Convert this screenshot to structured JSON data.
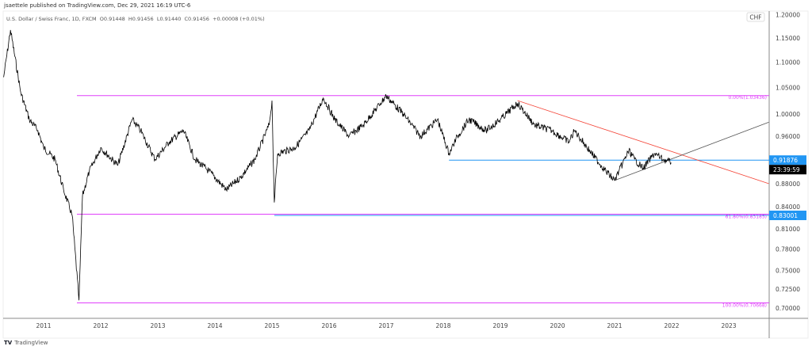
{
  "header": {
    "published": "jsaettele published on TradingView.com, Dec 29, 2021 16:19 UTC-6",
    "symbol": "U.S. Dollar / Swiss Franc, 1D, FXCM",
    "open": "O0.91448",
    "high": "H0.91456",
    "low": "L0.91440",
    "close": "C0.91456",
    "change": "+0.00008 (+0.01%)"
  },
  "currency_badge": "CHF",
  "footer": {
    "logo": "TradingView"
  },
  "colors": {
    "fib": "#e040fb",
    "blue": "#2196f3",
    "red": "#f44336",
    "trend": "#555555",
    "price": "#000000"
  },
  "chart_data": {
    "type": "line",
    "scale": "log",
    "ylim": [
      0.69,
      1.21
    ],
    "xlim": [
      2010.3,
      2023.7
    ],
    "x_ticks": [
      "2011",
      "2012",
      "2013",
      "2014",
      "2015",
      "2016",
      "2017",
      "2018",
      "2019",
      "2020",
      "2021",
      "2022",
      "2023"
    ],
    "y_ticks": [
      "1.20000",
      "1.15000",
      "1.10000",
      "1.05000",
      "1.00000",
      "0.96000",
      "0.88000",
      "0.84000",
      "0.81000",
      "0.78000",
      "0.75000",
      "0.72500",
      "0.70000"
    ],
    "price_labels": {
      "last": "0.91876",
      "countdown": "23:39:59",
      "level": "0.83001"
    },
    "fib_levels": [
      {
        "label": "0.00%(1.03436)",
        "value": 1.03436
      },
      {
        "label": "61.80%(0.83185)",
        "value": 0.83185
      },
      {
        "label": "100.00%(0.70668)",
        "value": 0.70668
      }
    ],
    "horizontal_lines": [
      {
        "value": 0.91876,
        "from": 2018.1
      },
      {
        "value": 0.83001,
        "from": 2015.04
      }
    ],
    "trendlines": [
      {
        "color": "red",
        "from": [
          2019.3,
          1.025
        ],
        "to": [
          2023.7,
          0.88
        ]
      },
      {
        "color": "gray",
        "from": [
          2021.0,
          0.885
        ],
        "to": [
          2023.7,
          0.985
        ]
      }
    ],
    "series": [
      [
        2010.3,
        1.07
      ],
      [
        2010.42,
        1.167
      ],
      [
        2010.6,
        1.04
      ],
      [
        2010.75,
        0.99
      ],
      [
        2010.9,
        0.97
      ],
      [
        2011.0,
        0.94
      ],
      [
        2011.2,
        0.92
      ],
      [
        2011.35,
        0.87
      ],
      [
        2011.5,
        0.83
      ],
      [
        2011.62,
        0.71
      ],
      [
        2011.68,
        0.86
      ],
      [
        2011.8,
        0.9
      ],
      [
        2012.0,
        0.94
      ],
      [
        2012.3,
        0.91
      ],
      [
        2012.55,
        0.99
      ],
      [
        2012.7,
        0.97
      ],
      [
        2012.95,
        0.92
      ],
      [
        2013.2,
        0.95
      ],
      [
        2013.45,
        0.97
      ],
      [
        2013.65,
        0.92
      ],
      [
        2013.9,
        0.9
      ],
      [
        2014.2,
        0.87
      ],
      [
        2014.45,
        0.89
      ],
      [
        2014.7,
        0.92
      ],
      [
        2014.95,
        0.98
      ],
      [
        2015.0,
        1.025
      ],
      [
        2015.04,
        0.85
      ],
      [
        2015.1,
        0.93
      ],
      [
        2015.4,
        0.94
      ],
      [
        2015.65,
        0.97
      ],
      [
        2015.9,
        1.03
      ],
      [
        2016.1,
        0.99
      ],
      [
        2016.35,
        0.96
      ],
      [
        2016.6,
        0.98
      ],
      [
        2016.9,
        1.02
      ],
      [
        2017.0,
        1.034
      ],
      [
        2017.3,
        1.0
      ],
      [
        2017.6,
        0.96
      ],
      [
        2017.9,
        0.99
      ],
      [
        2018.1,
        0.93
      ],
      [
        2018.25,
        0.96
      ],
      [
        2018.45,
        0.99
      ],
      [
        2018.75,
        0.97
      ],
      [
        2019.0,
        0.99
      ],
      [
        2019.3,
        1.02
      ],
      [
        2019.6,
        0.98
      ],
      [
        2019.9,
        0.97
      ],
      [
        2020.2,
        0.95
      ],
      [
        2020.3,
        0.97
      ],
      [
        2020.6,
        0.93
      ],
      [
        2020.85,
        0.9
      ],
      [
        2021.0,
        0.885
      ],
      [
        2021.25,
        0.935
      ],
      [
        2021.35,
        0.92
      ],
      [
        2021.5,
        0.905
      ],
      [
        2021.7,
        0.93
      ],
      [
        2021.85,
        0.92
      ],
      [
        2021.99,
        0.9146
      ]
    ]
  }
}
